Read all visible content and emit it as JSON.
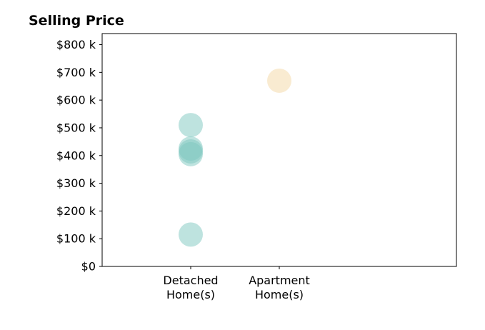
{
  "chart_data": {
    "type": "scatter",
    "title": "Selling Price",
    "xlabel": "",
    "ylabel": "",
    "categories": [
      "Detached\nHome(s)",
      "Apartment\nHome(s)"
    ],
    "xlim": [
      0,
      4
    ],
    "ylim": [
      0,
      840000
    ],
    "y_ticks": [
      0,
      100000,
      200000,
      300000,
      400000,
      500000,
      600000,
      700000,
      800000
    ],
    "y_tick_labels": [
      "$0",
      "$100 k",
      "$200 k",
      "$300 k",
      "$400 k",
      "$500 k",
      "$600 k",
      "$700 k",
      "$800 k"
    ],
    "grid": false,
    "legend": "none",
    "series": [
      {
        "category": "Detached\nHome(s)",
        "color": "#7ec8c0",
        "opacity": 0.5,
        "values": [
          510000,
          425000,
          415000,
          405000,
          115000
        ]
      },
      {
        "category": "Apartment\nHome(s)",
        "color": "#f5deb3",
        "opacity": 0.6,
        "values": [
          670000
        ]
      }
    ]
  }
}
